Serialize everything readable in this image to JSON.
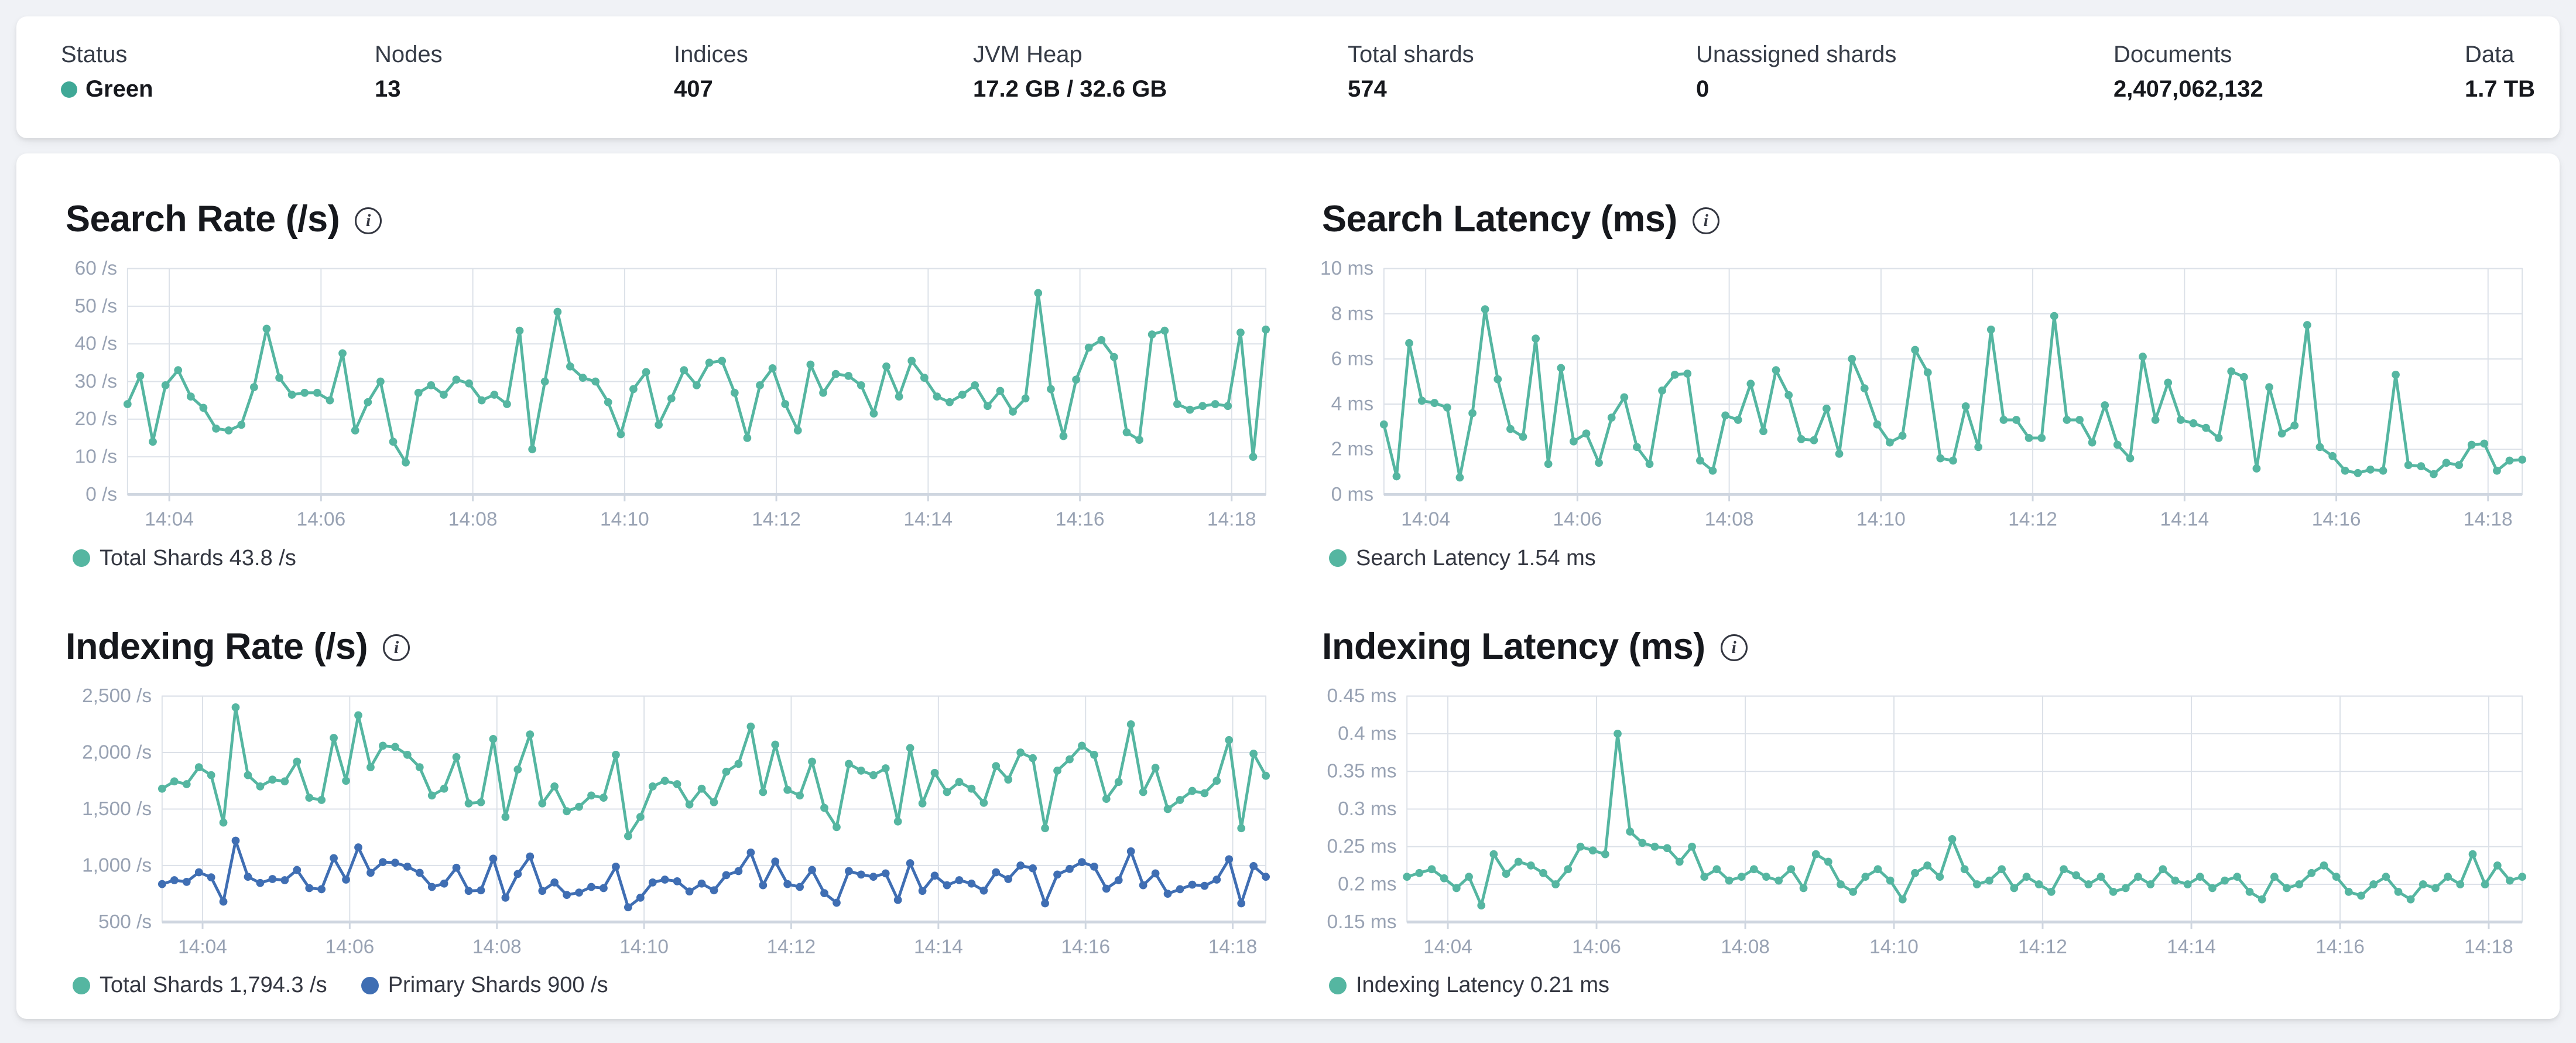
{
  "icons": {
    "info": "i"
  },
  "colors": {
    "teal": "#55B6A1",
    "blue": "#3F6EB3",
    "status_green": "#3FA896",
    "grid": "#DCE1E8",
    "axis_text": "#98A2B3"
  },
  "overview": {
    "stats": [
      {
        "label": "Status",
        "value": "Green",
        "dot_color": "#3FA896"
      },
      {
        "label": "Nodes",
        "value": "13"
      },
      {
        "label": "Indices",
        "value": "407"
      },
      {
        "label": "JVM Heap",
        "value": "17.2 GB / 32.6 GB"
      },
      {
        "label": "Total shards",
        "value": "574"
      },
      {
        "label": "Unassigned shards",
        "value": "0"
      },
      {
        "label": "Documents",
        "value": "2,407,062,132"
      },
      {
        "label": "Data",
        "value": "1.7 TB"
      }
    ]
  },
  "chart_data": [
    {
      "type": "line",
      "key": "search-rate",
      "title": "Search Rate (/s)",
      "ylim": [
        0,
        60
      ],
      "y_ticks": [
        {
          "v": 0,
          "label": "0 /s"
        },
        {
          "v": 10,
          "label": "10 /s"
        },
        {
          "v": 20,
          "label": "20 /s"
        },
        {
          "v": 30,
          "label": "30 /s"
        },
        {
          "v": 40,
          "label": "40 /s"
        },
        {
          "v": 50,
          "label": "50 /s"
        },
        {
          "v": 60,
          "label": "60 /s"
        }
      ],
      "x_ticks": [
        {
          "i": 3.3,
          "label": "14:04"
        },
        {
          "i": 15.3,
          "label": "14:06"
        },
        {
          "i": 27.3,
          "label": "14:08"
        },
        {
          "i": 39.3,
          "label": "14:10"
        },
        {
          "i": 51.3,
          "label": "14:12"
        },
        {
          "i": 63.3,
          "label": "14:14"
        },
        {
          "i": 75.3,
          "label": "14:16"
        },
        {
          "i": 87.3,
          "label": "14:18"
        }
      ],
      "series": [
        {
          "name": "Total Shards",
          "legend": "Total Shards 43.8 /s",
          "color": "#55B6A1",
          "values": [
            24,
            31.5,
            14,
            29,
            33,
            26,
            23,
            17.5,
            17,
            18.5,
            28.5,
            44,
            31,
            26.5,
            27,
            27,
            25,
            37.5,
            17,
            24.5,
            30,
            14,
            8.5,
            27,
            29,
            26.5,
            30.5,
            29.5,
            25,
            26.5,
            24,
            43.5,
            12,
            30,
            48.5,
            34,
            31,
            30,
            24.5,
            16,
            28,
            32.5,
            18.5,
            25.5,
            33,
            29,
            35,
            35.5,
            27,
            15,
            29,
            33.5,
            24,
            17,
            34.5,
            27,
            32,
            31.5,
            29,
            21.5,
            34,
            26,
            35.5,
            31,
            26,
            24.5,
            26.5,
            29,
            23.5,
            27.5,
            22,
            25.5,
            53.5,
            28,
            15.5,
            30.5,
            39,
            41,
            36.5,
            16.5,
            14.5,
            42.5,
            43.5,
            24,
            22.5,
            23.5,
            24,
            23.5,
            43,
            10,
            43.8
          ]
        }
      ]
    },
    {
      "type": "line",
      "key": "search-latency",
      "title": "Search Latency (ms)",
      "ylim": [
        0,
        10
      ],
      "y_ticks": [
        {
          "v": 0,
          "label": "0 ms"
        },
        {
          "v": 2,
          "label": "2 ms"
        },
        {
          "v": 4,
          "label": "4 ms"
        },
        {
          "v": 6,
          "label": "6 ms"
        },
        {
          "v": 8,
          "label": "8 ms"
        },
        {
          "v": 10,
          "label": "10 ms"
        }
      ],
      "x_ticks": [
        {
          "i": 3.3,
          "label": "14:04"
        },
        {
          "i": 15.3,
          "label": "14:06"
        },
        {
          "i": 27.3,
          "label": "14:08"
        },
        {
          "i": 39.3,
          "label": "14:10"
        },
        {
          "i": 51.3,
          "label": "14:12"
        },
        {
          "i": 63.3,
          "label": "14:14"
        },
        {
          "i": 75.3,
          "label": "14:16"
        },
        {
          "i": 87.3,
          "label": "14:18"
        }
      ],
      "series": [
        {
          "name": "Search Latency",
          "legend": "Search Latency 1.54 ms",
          "color": "#55B6A1",
          "values": [
            3.1,
            0.8,
            6.7,
            4.15,
            4.05,
            3.85,
            0.75,
            3.6,
            8.2,
            5.1,
            2.9,
            2.55,
            6.9,
            1.35,
            5.6,
            2.35,
            2.7,
            1.4,
            3.4,
            4.3,
            2.1,
            1.35,
            4.6,
            5.3,
            5.35,
            1.5,
            1.05,
            3.5,
            3.3,
            4.9,
            2.8,
            5.5,
            4.4,
            2.45,
            2.4,
            3.8,
            1.8,
            6.0,
            4.7,
            3.1,
            2.3,
            2.6,
            6.4,
            5.4,
            1.6,
            1.5,
            3.9,
            2.1,
            7.3,
            3.3,
            3.3,
            2.5,
            2.5,
            7.9,
            3.3,
            3.3,
            2.3,
            3.95,
            2.2,
            1.6,
            6.1,
            3.3,
            4.95,
            3.3,
            3.15,
            2.95,
            2.5,
            5.45,
            5.2,
            1.15,
            4.75,
            2.7,
            3.05,
            7.5,
            2.1,
            1.7,
            1.05,
            0.95,
            1.1,
            1.05,
            5.3,
            1.3,
            1.25,
            0.9,
            1.4,
            1.3,
            2.2,
            2.25,
            1.05,
            1.5,
            1.54
          ]
        }
      ]
    },
    {
      "type": "line",
      "key": "indexing-rate",
      "title": "Indexing Rate (/s)",
      "ylim": [
        500,
        2500
      ],
      "y_ticks": [
        {
          "v": 500,
          "label": "500 /s"
        },
        {
          "v": 1000,
          "label": "1,000 /s"
        },
        {
          "v": 1500,
          "label": "1,500 /s"
        },
        {
          "v": 2000,
          "label": "2,000 /s"
        },
        {
          "v": 2500,
          "label": "2,500 /s"
        }
      ],
      "x_ticks": [
        {
          "i": 3.3,
          "label": "14:04"
        },
        {
          "i": 15.3,
          "label": "14:06"
        },
        {
          "i": 27.3,
          "label": "14:08"
        },
        {
          "i": 39.3,
          "label": "14:10"
        },
        {
          "i": 51.3,
          "label": "14:12"
        },
        {
          "i": 63.3,
          "label": "14:14"
        },
        {
          "i": 75.3,
          "label": "14:16"
        },
        {
          "i": 87.3,
          "label": "14:18"
        }
      ],
      "series": [
        {
          "name": "Total Shards",
          "legend": "Total Shards 1,794.3 /s",
          "color": "#55B6A1",
          "values": [
            1680,
            1745,
            1720,
            1870,
            1800,
            1380,
            2400,
            1800,
            1700,
            1760,
            1745,
            1920,
            1600,
            1580,
            2130,
            1750,
            2330,
            1870,
            2060,
            2050,
            1980,
            1870,
            1620,
            1680,
            1960,
            1550,
            1560,
            2120,
            1430,
            1850,
            2160,
            1550,
            1700,
            1480,
            1520,
            1620,
            1600,
            1980,
            1260,
            1430,
            1700,
            1750,
            1720,
            1540,
            1680,
            1560,
            1830,
            1900,
            2230,
            1650,
            2070,
            1670,
            1620,
            1920,
            1510,
            1340,
            1900,
            1840,
            1800,
            1860,
            1390,
            2040,
            1550,
            1820,
            1650,
            1740,
            1680,
            1555,
            1880,
            1760,
            2000,
            1950,
            1330,
            1840,
            1940,
            2060,
            1980,
            1590,
            1740,
            2250,
            1650,
            1865,
            1500,
            1580,
            1660,
            1640,
            1750,
            2110,
            1330,
            1990,
            1794.3
          ]
        },
        {
          "name": "Primary Shards",
          "legend": "Primary Shards 900 /s",
          "color": "#3F6EB3",
          "values": [
            835,
            870,
            855,
            940,
            895,
            680,
            1220,
            900,
            845,
            880,
            870,
            960,
            800,
            790,
            1065,
            875,
            1160,
            935,
            1030,
            1025,
            990,
            935,
            810,
            840,
            980,
            775,
            780,
            1060,
            715,
            925,
            1080,
            775,
            850,
            740,
            760,
            810,
            800,
            990,
            630,
            715,
            850,
            875,
            860,
            770,
            840,
            780,
            915,
            950,
            1115,
            825,
            1035,
            835,
            810,
            960,
            755,
            670,
            950,
            920,
            900,
            930,
            695,
            1020,
            775,
            910,
            825,
            870,
            840,
            778,
            940,
            880,
            1000,
            975,
            665,
            920,
            970,
            1030,
            990,
            795,
            870,
            1125,
            825,
            930,
            750,
            790,
            830,
            820,
            875,
            1055,
            665,
            995,
            900
          ]
        }
      ]
    },
    {
      "type": "line",
      "key": "indexing-latency",
      "title": "Indexing Latency (ms)",
      "ylim": [
        0.15,
        0.45
      ],
      "y_ticks": [
        {
          "v": 0.15,
          "label": "0.15 ms"
        },
        {
          "v": 0.2,
          "label": "0.2 ms"
        },
        {
          "v": 0.25,
          "label": "0.25 ms"
        },
        {
          "v": 0.3,
          "label": "0.3 ms"
        },
        {
          "v": 0.35,
          "label": "0.35 ms"
        },
        {
          "v": 0.4,
          "label": "0.4 ms"
        },
        {
          "v": 0.45,
          "label": "0.45 ms"
        }
      ],
      "x_ticks": [
        {
          "i": 3.3,
          "label": "14:04"
        },
        {
          "i": 15.3,
          "label": "14:06"
        },
        {
          "i": 27.3,
          "label": "14:08"
        },
        {
          "i": 39.3,
          "label": "14:10"
        },
        {
          "i": 51.3,
          "label": "14:12"
        },
        {
          "i": 63.3,
          "label": "14:14"
        },
        {
          "i": 75.3,
          "label": "14:16"
        },
        {
          "i": 87.3,
          "label": "14:18"
        }
      ],
      "series": [
        {
          "name": "Indexing Latency",
          "legend": "Indexing Latency 0.21 ms",
          "color": "#55B6A1",
          "values": [
            0.21,
            0.215,
            0.22,
            0.208,
            0.195,
            0.21,
            0.172,
            0.24,
            0.214,
            0.23,
            0.225,
            0.215,
            0.2,
            0.22,
            0.25,
            0.245,
            0.24,
            0.4,
            0.27,
            0.255,
            0.25,
            0.248,
            0.23,
            0.25,
            0.21,
            0.22,
            0.205,
            0.21,
            0.22,
            0.21,
            0.205,
            0.22,
            0.195,
            0.24,
            0.23,
            0.2,
            0.19,
            0.21,
            0.22,
            0.205,
            0.18,
            0.215,
            0.225,
            0.21,
            0.26,
            0.22,
            0.2,
            0.205,
            0.22,
            0.195,
            0.21,
            0.2,
            0.19,
            0.22,
            0.212,
            0.2,
            0.21,
            0.19,
            0.195,
            0.21,
            0.2,
            0.22,
            0.205,
            0.2,
            0.21,
            0.195,
            0.205,
            0.21,
            0.19,
            0.18,
            0.21,
            0.195,
            0.2,
            0.215,
            0.225,
            0.21,
            0.19,
            0.185,
            0.2,
            0.21,
            0.19,
            0.18,
            0.2,
            0.195,
            0.21,
            0.2,
            0.24,
            0.2,
            0.225,
            0.205,
            0.21
          ]
        }
      ]
    }
  ]
}
